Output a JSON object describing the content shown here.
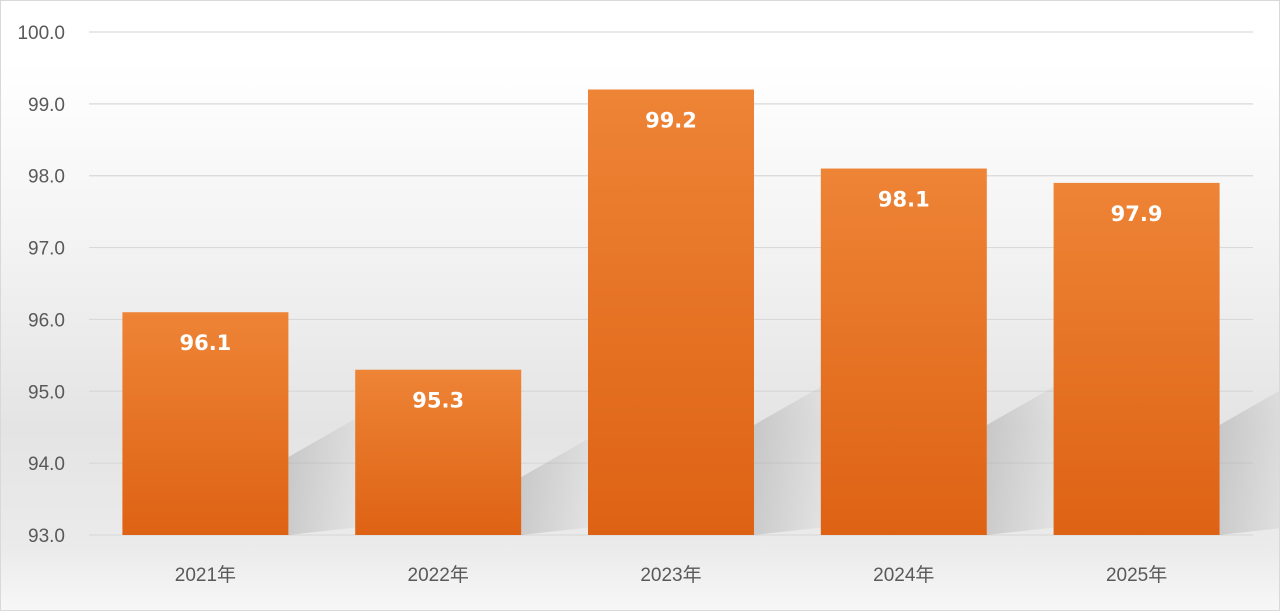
{
  "chart_data": {
    "type": "bar",
    "categories": [
      "2021年",
      "2022年",
      "2023年",
      "2024年",
      "2025年"
    ],
    "values": [
      96.1,
      95.3,
      99.2,
      98.1,
      97.9
    ],
    "data_labels": [
      "96.1",
      "95.3",
      "99.2",
      "98.1",
      "97.9"
    ],
    "ylim": [
      93.0,
      100.0
    ],
    "yticks": [
      "93.0",
      "94.0",
      "95.0",
      "96.0",
      "97.0",
      "98.0",
      "99.0",
      "100.0"
    ],
    "ytick_values": [
      93,
      94,
      95,
      96,
      97,
      98,
      99,
      100
    ],
    "grid": true,
    "legend": "none",
    "bar_color_top": "#ee8436",
    "bar_color_bottom": "#de6214",
    "gridline_color": "#d9d9d9",
    "text_color": "#595959"
  }
}
